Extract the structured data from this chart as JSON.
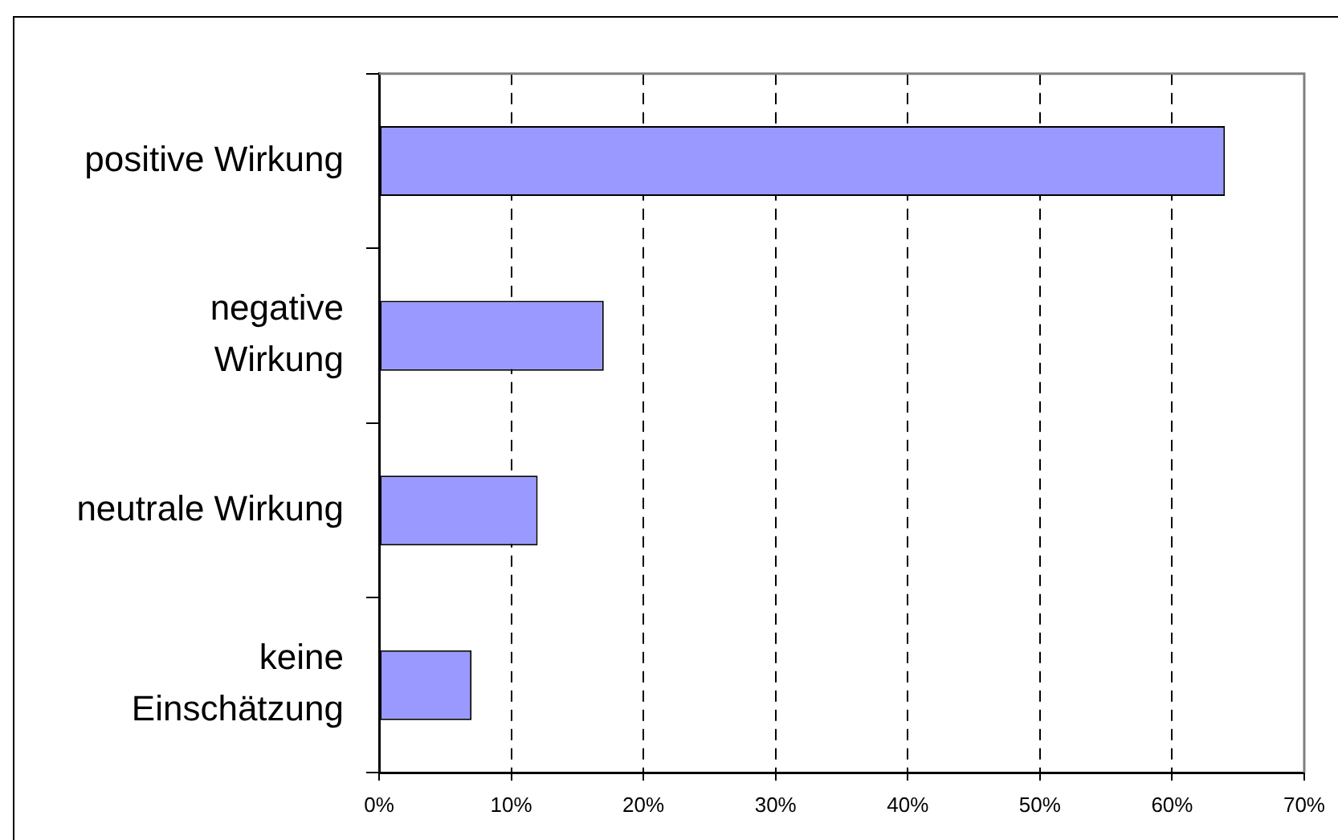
{
  "chart_data": {
    "type": "bar",
    "orientation": "horizontal",
    "categories": [
      "positive Wirkung",
      "negative Wirkung",
      "neutrale Wirkung",
      "keine Einschätzung"
    ],
    "values": [
      64,
      17,
      12,
      7
    ],
    "color": "#9999ff",
    "xlim": [
      0,
      70
    ],
    "xticks": [
      {
        "value": 0,
        "label": "0%"
      },
      {
        "value": 10,
        "label": "10%"
      },
      {
        "value": 20,
        "label": "20%"
      },
      {
        "value": 30,
        "label": "30%"
      },
      {
        "value": 40,
        "label": "40%"
      },
      {
        "value": 50,
        "label": "50%"
      },
      {
        "value": 60,
        "label": "60%"
      },
      {
        "value": 70,
        "label": "70%"
      }
    ],
    "grid": "x"
  }
}
